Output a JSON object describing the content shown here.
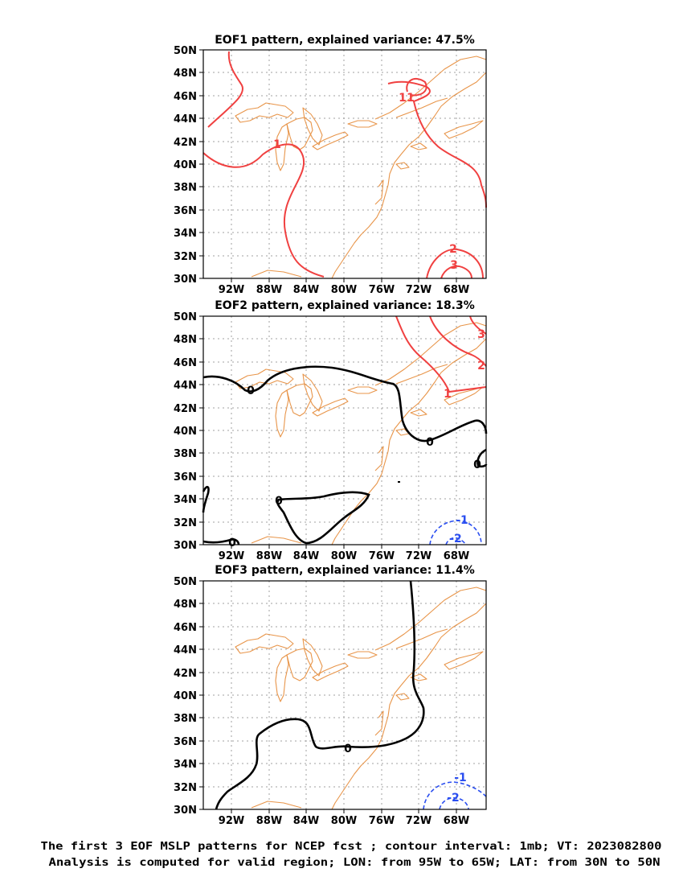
{
  "panels": [
    {
      "title": "EOF1 pattern, explained variance: 47.5%",
      "contour_labels": [
        {
          "value": "1",
          "color": "#f04040"
        },
        {
          "value": "1",
          "color": "#f04040"
        },
        {
          "value": "1",
          "color": "#f04040"
        },
        {
          "value": "2",
          "color": "#f04040"
        },
        {
          "value": "3",
          "color": "#f04040"
        }
      ]
    },
    {
      "title": "EOF2 pattern, explained variance: 18.3%",
      "contour_labels": [
        {
          "value": "0",
          "color": "#000000"
        },
        {
          "value": "0",
          "color": "#000000"
        },
        {
          "value": "0",
          "color": "#000000"
        },
        {
          "value": "0",
          "color": "#000000"
        },
        {
          "value": "0",
          "color": "#000000"
        },
        {
          "value": "1",
          "color": "#f04040"
        },
        {
          "value": "2",
          "color": "#f04040"
        },
        {
          "value": "3",
          "color": "#f04040"
        },
        {
          "value": "-1",
          "color": "#2a4ef0"
        },
        {
          "value": "-2",
          "color": "#2a4ef0"
        }
      ]
    },
    {
      "title": "EOF3 pattern, explained variance: 11.4%",
      "contour_labels": [
        {
          "value": "0",
          "color": "#000000"
        },
        {
          "value": "-1",
          "color": "#2a4ef0"
        },
        {
          "value": "-2",
          "color": "#2a4ef0"
        }
      ]
    }
  ],
  "lat_ticks": [
    "50N",
    "48N",
    "46N",
    "44N",
    "42N",
    "40N",
    "38N",
    "36N",
    "34N",
    "32N",
    "30N"
  ],
  "lon_ticks": [
    "92W",
    "88W",
    "84W",
    "80W",
    "76W",
    "72W",
    "68W"
  ],
  "caption": {
    "line1": "The first 3 EOF MSLP patterns for NCEP fcst ; contour interval: 1mb; VT: 2023082800",
    "line2": "Analysis is computed for valid region; LON: from 95W to 65W; LAT: from 30N to 50N"
  },
  "colors": {
    "positive_contour": "#f04040",
    "zero_contour": "#000000",
    "negative_contour": "#2a4ef0",
    "coastline": "#e8954a"
  }
}
